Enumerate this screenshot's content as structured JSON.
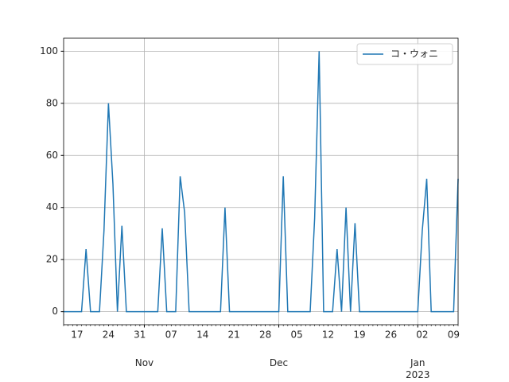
{
  "chart_data": {
    "type": "line",
    "x": [
      "2022-10-14",
      "2022-10-15",
      "2022-10-16",
      "2022-10-17",
      "2022-10-18",
      "2022-10-19",
      "2022-10-20",
      "2022-10-21",
      "2022-10-22",
      "2022-10-23",
      "2022-10-24",
      "2022-10-25",
      "2022-10-26",
      "2022-10-27",
      "2022-10-28",
      "2022-10-29",
      "2022-10-30",
      "2022-10-31",
      "2022-11-01",
      "2022-11-02",
      "2022-11-03",
      "2022-11-04",
      "2022-11-05",
      "2022-11-06",
      "2022-11-07",
      "2022-11-08",
      "2022-11-09",
      "2022-11-10",
      "2022-11-11",
      "2022-11-12",
      "2022-11-13",
      "2022-11-14",
      "2022-11-15",
      "2022-11-16",
      "2022-11-17",
      "2022-11-18",
      "2022-11-19",
      "2022-11-20",
      "2022-11-21",
      "2022-11-22",
      "2022-11-23",
      "2022-11-24",
      "2022-11-25",
      "2022-11-26",
      "2022-11-27",
      "2022-11-28",
      "2022-11-29",
      "2022-11-30",
      "2022-12-01",
      "2022-12-02",
      "2022-12-03",
      "2022-12-04",
      "2022-12-05",
      "2022-12-06",
      "2022-12-07",
      "2022-12-08",
      "2022-12-09",
      "2022-12-10",
      "2022-12-11",
      "2022-12-12",
      "2022-12-13",
      "2022-12-14",
      "2022-12-15",
      "2022-12-16",
      "2022-12-17",
      "2022-12-18",
      "2022-12-19",
      "2022-12-20",
      "2022-12-21",
      "2022-12-22",
      "2022-12-23",
      "2022-12-24",
      "2022-12-25",
      "2022-12-26",
      "2022-12-27",
      "2022-12-28",
      "2022-12-29",
      "2022-12-30",
      "2022-12-31",
      "2023-01-01",
      "2023-01-02",
      "2023-01-03",
      "2023-01-04",
      "2023-01-05",
      "2023-01-06",
      "2023-01-07",
      "2023-01-08",
      "2023-01-09",
      "2023-01-10"
    ],
    "series": [
      {
        "name": "コ・ウォニ",
        "color": "#1f77b4",
        "values": [
          0,
          0,
          0,
          0,
          0,
          24,
          0,
          0,
          0,
          31,
          80,
          49,
          0,
          33,
          0,
          0,
          0,
          0,
          0,
          0,
          0,
          0,
          32,
          0,
          0,
          0,
          52,
          38,
          0,
          0,
          0,
          0,
          0,
          0,
          0,
          0,
          40,
          0,
          0,
          0,
          0,
          0,
          0,
          0,
          0,
          0,
          0,
          0,
          0,
          52,
          0,
          0,
          0,
          0,
          0,
          0,
          36,
          100,
          0,
          0,
          0,
          24,
          0,
          40,
          0,
          34,
          0,
          0,
          0,
          0,
          0,
          0,
          0,
          0,
          0,
          0,
          0,
          0,
          0,
          0,
          31,
          51,
          0,
          0,
          0,
          0,
          0,
          0,
          51
        ]
      }
    ],
    "xlim": [
      "2022-10-14",
      "2023-01-10"
    ],
    "xticks": [
      {
        "value": "2022-11-01",
        "label": "Nov"
      },
      {
        "value": "2022-12-01",
        "label": "Dec"
      },
      {
        "value": "2023-01-01",
        "label": "Jan\n2023"
      }
    ],
    "xminorticks": [
      {
        "value": "2022-10-17",
        "label": "17"
      },
      {
        "value": "2022-10-24",
        "label": "24"
      },
      {
        "value": "2022-10-31",
        "label": "31"
      },
      {
        "value": "2022-11-07",
        "label": "07"
      },
      {
        "value": "2022-11-14",
        "label": "14"
      },
      {
        "value": "2022-11-21",
        "label": "21"
      },
      {
        "value": "2022-11-28",
        "label": "28"
      },
      {
        "value": "2022-12-05",
        "label": "05"
      },
      {
        "value": "2022-12-12",
        "label": "12"
      },
      {
        "value": "2022-12-19",
        "label": "19"
      },
      {
        "value": "2022-12-26",
        "label": "26"
      },
      {
        "value": "2023-01-02",
        "label": "02"
      },
      {
        "value": "2023-01-09",
        "label": "09"
      }
    ],
    "ylim": [
      -5,
      105
    ],
    "yticks": [
      0,
      20,
      40,
      60,
      80,
      100
    ],
    "grid": true,
    "legend": "upper right"
  }
}
